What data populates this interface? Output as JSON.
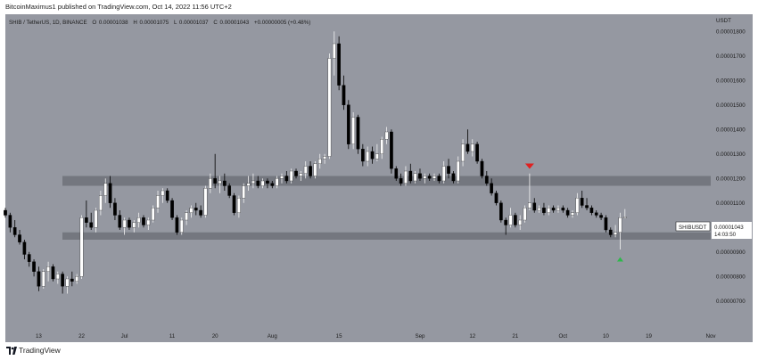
{
  "header": {
    "published": "BitcoinMaximus1 published on TradingView.com, Oct 14, 2022 11:56 UTC+2"
  },
  "legend": {
    "symbol": "SHIB / TetherUS, 1D, BINANCE",
    "open_label": "O",
    "open": "0.00001038",
    "high_label": "H",
    "high": "0.00001075",
    "low_label": "L",
    "low": "0.00001037",
    "close_label": "C",
    "close": "0.00001043",
    "change": "+0.00000005 (+0.48%)"
  },
  "price_tag": {
    "symbol": "SHIBUSDT",
    "price": "0.00001043",
    "countdown": "14:03:50"
  },
  "footer": {
    "brand": "TradingView"
  },
  "colors": {
    "background": "#9598a1",
    "up_candle": "#ffffff",
    "down_candle": "#000000",
    "zone": "#6f7179",
    "resistance_marker": "#e02020",
    "support_marker": "#2db84a"
  },
  "chart_data": {
    "type": "candlestick",
    "title": "SHIB / TetherUS, 1D, BINANCE",
    "y_unit": "USDT",
    "y_ticks": [
      7e-06,
      8e-06,
      9e-06,
      1e-05,
      1.1e-05,
      1.2e-05,
      1.3e-05,
      1.4e-05,
      1.5e-05,
      1.6e-05,
      1.7e-05,
      1.8e-05
    ],
    "y_tick_labels": [
      "0.00000700",
      "0.00000800",
      "0.00000900",
      "0.00001000",
      "0.00001100",
      "0.00001200",
      "0.00001300",
      "0.00001400",
      "0.00001500",
      "0.00001600",
      "0.00001700",
      "0.00001800"
    ],
    "ylim": [
      5.9e-06,
      1.87e-05
    ],
    "x_tick_labels": [
      "13",
      "22",
      "Jul",
      "11",
      "20",
      "Aug",
      "15",
      "Sep",
      "12",
      "21",
      "Oct",
      "10",
      "19",
      "Nov"
    ],
    "x_tick_dates": [
      "2022-06-13",
      "2022-06-22",
      "2022-07-01",
      "2022-07-11",
      "2022-07-20",
      "2022-08-01",
      "2022-08-15",
      "2022-09-01",
      "2022-09-12",
      "2022-09-21",
      "2022-10-01",
      "2022-10-10",
      "2022-10-19",
      "2022-11-01"
    ],
    "xlim": [
      "2022-06-06",
      "2022-11-01"
    ],
    "zones": [
      {
        "name": "resistance",
        "low": 1.17e-05,
        "high": 1.21e-05
      },
      {
        "name": "support",
        "low": 9.5e-06,
        "high": 9.8e-06
      }
    ],
    "markers": [
      {
        "name": "bearish-arrow",
        "date": "2022-09-24",
        "price": 1.25e-05,
        "direction": "down"
      },
      {
        "name": "bullish-arrow",
        "date": "2022-10-13",
        "price": 8.7e-06,
        "direction": "up"
      }
    ],
    "candles": [
      [
        "2022-06-06",
        1.07,
        1.08,
        1.04,
        1.05
      ],
      [
        "2022-06-07",
        1.05,
        1.06,
        0.98,
        1.0
      ],
      [
        "2022-06-08",
        1.0,
        1.03,
        0.96,
        0.97
      ],
      [
        "2022-06-09",
        0.97,
        0.99,
        0.93,
        0.94
      ],
      [
        "2022-06-10",
        0.94,
        0.95,
        0.87,
        0.89
      ],
      [
        "2022-06-11",
        0.89,
        0.9,
        0.84,
        0.86
      ],
      [
        "2022-06-12",
        0.86,
        0.87,
        0.8,
        0.82
      ],
      [
        "2022-06-13",
        0.82,
        0.84,
        0.74,
        0.76
      ],
      [
        "2022-06-14",
        0.76,
        0.83,
        0.75,
        0.82
      ],
      [
        "2022-06-15",
        0.82,
        0.86,
        0.78,
        0.84
      ],
      [
        "2022-06-16",
        0.84,
        0.85,
        0.78,
        0.79
      ],
      [
        "2022-06-17",
        0.79,
        0.82,
        0.77,
        0.81
      ],
      [
        "2022-06-18",
        0.81,
        0.82,
        0.73,
        0.76
      ],
      [
        "2022-06-19",
        0.76,
        0.8,
        0.73,
        0.79
      ],
      [
        "2022-06-20",
        0.79,
        0.82,
        0.76,
        0.78
      ],
      [
        "2022-06-21",
        0.78,
        0.81,
        0.77,
        0.8
      ],
      [
        "2022-06-22",
        0.8,
        1.05,
        0.79,
        1.04
      ],
      [
        "2022-06-23",
        1.04,
        1.11,
        1.0,
        1.02
      ],
      [
        "2022-06-24",
        1.02,
        1.06,
        0.99,
        1.0
      ],
      [
        "2022-06-25",
        1.0,
        1.08,
        0.98,
        1.07
      ],
      [
        "2022-06-26",
        1.07,
        1.15,
        1.05,
        1.13
      ],
      [
        "2022-06-27",
        1.13,
        1.2,
        1.1,
        1.18
      ],
      [
        "2022-06-28",
        1.18,
        1.21,
        1.08,
        1.1
      ],
      [
        "2022-06-29",
        1.1,
        1.12,
        1.03,
        1.05
      ],
      [
        "2022-06-30",
        1.05,
        1.07,
        0.99,
        1.0
      ],
      [
        "2022-07-01",
        1.0,
        1.04,
        0.97,
        1.03
      ],
      [
        "2022-07-02",
        1.03,
        1.04,
        0.99,
        1.0
      ],
      [
        "2022-07-03",
        1.0,
        1.03,
        0.98,
        1.02
      ],
      [
        "2022-07-04",
        1.02,
        1.06,
        1.0,
        1.04
      ],
      [
        "2022-07-05",
        1.04,
        1.05,
        1.0,
        1.01
      ],
      [
        "2022-07-06",
        1.01,
        1.04,
        0.99,
        1.03
      ],
      [
        "2022-07-07",
        1.03,
        1.09,
        1.02,
        1.08
      ],
      [
        "2022-07-08",
        1.08,
        1.15,
        1.06,
        1.13
      ],
      [
        "2022-07-09",
        1.13,
        1.16,
        1.1,
        1.15
      ],
      [
        "2022-07-10",
        1.15,
        1.16,
        1.1,
        1.11
      ],
      [
        "2022-07-11",
        1.11,
        1.12,
        1.03,
        1.04
      ],
      [
        "2022-07-12",
        1.04,
        1.05,
        0.97,
        0.98
      ],
      [
        "2022-07-13",
        0.98,
        1.04,
        0.97,
        1.03
      ],
      [
        "2022-07-14",
        1.03,
        1.07,
        1.01,
        1.06
      ],
      [
        "2022-07-15",
        1.06,
        1.09,
        1.04,
        1.08
      ],
      [
        "2022-07-16",
        1.08,
        1.1,
        1.05,
        1.07
      ],
      [
        "2022-07-17",
        1.07,
        1.09,
        1.04,
        1.05
      ],
      [
        "2022-07-18",
        1.05,
        1.17,
        1.04,
        1.16
      ],
      [
        "2022-07-19",
        1.16,
        1.22,
        1.14,
        1.2
      ],
      [
        "2022-07-20",
        1.2,
        1.3,
        1.16,
        1.18
      ],
      [
        "2022-07-21",
        1.18,
        1.21,
        1.14,
        1.19
      ],
      [
        "2022-07-22",
        1.19,
        1.22,
        1.15,
        1.17
      ],
      [
        "2022-07-23",
        1.17,
        1.18,
        1.12,
        1.13
      ],
      [
        "2022-07-24",
        1.13,
        1.14,
        1.05,
        1.06
      ],
      [
        "2022-07-25",
        1.06,
        1.13,
        1.04,
        1.12
      ],
      [
        "2022-07-26",
        1.12,
        1.18,
        1.1,
        1.17
      ],
      [
        "2022-07-27",
        1.17,
        1.21,
        1.15,
        1.18
      ],
      [
        "2022-07-28",
        1.18,
        1.22,
        1.16,
        1.19
      ],
      [
        "2022-07-29",
        1.19,
        1.21,
        1.16,
        1.17
      ],
      [
        "2022-07-30",
        1.17,
        1.2,
        1.16,
        1.19
      ],
      [
        "2022-07-31",
        1.19,
        1.2,
        1.16,
        1.18
      ],
      [
        "2022-08-01",
        1.18,
        1.19,
        1.16,
        1.17
      ],
      [
        "2022-08-02",
        1.17,
        1.21,
        1.16,
        1.2
      ],
      [
        "2022-08-03",
        1.2,
        1.22,
        1.18,
        1.21
      ],
      [
        "2022-08-04",
        1.21,
        1.23,
        1.18,
        1.19
      ],
      [
        "2022-08-05",
        1.19,
        1.24,
        1.18,
        1.23
      ],
      [
        "2022-08-06",
        1.23,
        1.24,
        1.2,
        1.21
      ],
      [
        "2022-08-07",
        1.21,
        1.23,
        1.19,
        1.22
      ],
      [
        "2022-08-08",
        1.22,
        1.27,
        1.2,
        1.25
      ],
      [
        "2022-08-09",
        1.25,
        1.27,
        1.2,
        1.21
      ],
      [
        "2022-08-10",
        1.21,
        1.27,
        1.2,
        1.26
      ],
      [
        "2022-08-11",
        1.26,
        1.3,
        1.24,
        1.28
      ],
      [
        "2022-08-12",
        1.28,
        1.3,
        1.26,
        1.29
      ],
      [
        "2022-08-13",
        1.29,
        1.71,
        1.28,
        1.69
      ],
      [
        "2022-08-14",
        1.69,
        1.8,
        1.62,
        1.75
      ],
      [
        "2022-08-15",
        1.75,
        1.78,
        1.56,
        1.58
      ],
      [
        "2022-08-16",
        1.58,
        1.62,
        1.48,
        1.5
      ],
      [
        "2022-08-17",
        1.5,
        1.52,
        1.32,
        1.34
      ],
      [
        "2022-08-18",
        1.34,
        1.47,
        1.32,
        1.45
      ],
      [
        "2022-08-19",
        1.45,
        1.46,
        1.3,
        1.32
      ],
      [
        "2022-08-20",
        1.32,
        1.34,
        1.25,
        1.27
      ],
      [
        "2022-08-21",
        1.27,
        1.33,
        1.25,
        1.31
      ],
      [
        "2022-08-22",
        1.31,
        1.33,
        1.26,
        1.28
      ],
      [
        "2022-08-23",
        1.28,
        1.34,
        1.27,
        1.3
      ],
      [
        "2022-08-24",
        1.3,
        1.37,
        1.28,
        1.36
      ],
      [
        "2022-08-25",
        1.36,
        1.41,
        1.34,
        1.39
      ],
      [
        "2022-08-26",
        1.39,
        1.4,
        1.22,
        1.24
      ],
      [
        "2022-08-27",
        1.24,
        1.25,
        1.19,
        1.2
      ],
      [
        "2022-08-28",
        1.2,
        1.22,
        1.17,
        1.18
      ],
      [
        "2022-08-29",
        1.18,
        1.25,
        1.17,
        1.23
      ],
      [
        "2022-08-30",
        1.23,
        1.26,
        1.18,
        1.19
      ],
      [
        "2022-08-31",
        1.19,
        1.23,
        1.18,
        1.22
      ],
      [
        "2022-09-01",
        1.22,
        1.24,
        1.19,
        1.2
      ],
      [
        "2022-09-02",
        1.2,
        1.22,
        1.18,
        1.21
      ],
      [
        "2022-09-03",
        1.21,
        1.22,
        1.19,
        1.2
      ],
      [
        "2022-09-04",
        1.2,
        1.22,
        1.19,
        1.21
      ],
      [
        "2022-09-05",
        1.21,
        1.22,
        1.18,
        1.19
      ],
      [
        "2022-09-06",
        1.19,
        1.27,
        1.18,
        1.25
      ],
      [
        "2022-09-07",
        1.25,
        1.28,
        1.2,
        1.22
      ],
      [
        "2022-09-08",
        1.22,
        1.23,
        1.18,
        1.19
      ],
      [
        "2022-09-09",
        1.19,
        1.29,
        1.18,
        1.27
      ],
      [
        "2022-09-10",
        1.27,
        1.36,
        1.25,
        1.34
      ],
      [
        "2022-09-11",
        1.34,
        1.4,
        1.3,
        1.31
      ],
      [
        "2022-09-12",
        1.31,
        1.36,
        1.29,
        1.34
      ],
      [
        "2022-09-13",
        1.34,
        1.35,
        1.26,
        1.27
      ],
      [
        "2022-09-14",
        1.27,
        1.28,
        1.2,
        1.21
      ],
      [
        "2022-09-15",
        1.21,
        1.23,
        1.17,
        1.18
      ],
      [
        "2022-09-16",
        1.18,
        1.2,
        1.13,
        1.14
      ],
      [
        "2022-09-17",
        1.14,
        1.15,
        1.09,
        1.1
      ],
      [
        "2022-09-18",
        1.1,
        1.11,
        1.02,
        1.03
      ],
      [
        "2022-09-19",
        1.03,
        1.04,
        0.97,
        1.01
      ],
      [
        "2022-09-20",
        1.01,
        1.08,
        1.0,
        1.05
      ],
      [
        "2022-09-21",
        1.05,
        1.06,
        1.0,
        1.01
      ],
      [
        "2022-09-22",
        1.01,
        1.05,
        0.99,
        1.03
      ],
      [
        "2022-09-23",
        1.03,
        1.09,
        1.02,
        1.08
      ],
      [
        "2022-09-24",
        1.08,
        1.22,
        1.07,
        1.1
      ],
      [
        "2022-09-25",
        1.1,
        1.12,
        1.06,
        1.07
      ],
      [
        "2022-09-26",
        1.07,
        1.09,
        1.06,
        1.08
      ],
      [
        "2022-09-27",
        1.08,
        1.1,
        1.05,
        1.06
      ],
      [
        "2022-09-28",
        1.06,
        1.09,
        1.05,
        1.08
      ],
      [
        "2022-09-29",
        1.08,
        1.09,
        1.06,
        1.07
      ],
      [
        "2022-09-30",
        1.07,
        1.09,
        1.06,
        1.08
      ],
      [
        "2022-10-01",
        1.08,
        1.09,
        1.06,
        1.07
      ],
      [
        "2022-10-02",
        1.07,
        1.08,
        1.04,
        1.05
      ],
      [
        "2022-10-03",
        1.05,
        1.07,
        1.04,
        1.06
      ],
      [
        "2022-10-04",
        1.06,
        1.14,
        1.05,
        1.12
      ],
      [
        "2022-10-05",
        1.12,
        1.15,
        1.08,
        1.09
      ],
      [
        "2022-10-06",
        1.09,
        1.12,
        1.07,
        1.08
      ],
      [
        "2022-10-07",
        1.08,
        1.09,
        1.05,
        1.06
      ],
      [
        "2022-10-08",
        1.06,
        1.07,
        1.04,
        1.05
      ],
      [
        "2022-10-09",
        1.05,
        1.06,
        1.03,
        1.04
      ],
      [
        "2022-10-10",
        1.04,
        1.05,
        0.98,
        0.99
      ],
      [
        "2022-10-11",
        0.99,
        1.0,
        0.96,
        0.97
      ],
      [
        "2022-10-12",
        0.97,
        1.01,
        0.96,
        0.98
      ],
      [
        "2022-10-13",
        0.98,
        1.06,
        0.91,
        1.04
      ],
      [
        "2022-10-14",
        1.038,
        1.075,
        1.037,
        1.043
      ]
    ],
    "candle_scale": 1e-05
  }
}
